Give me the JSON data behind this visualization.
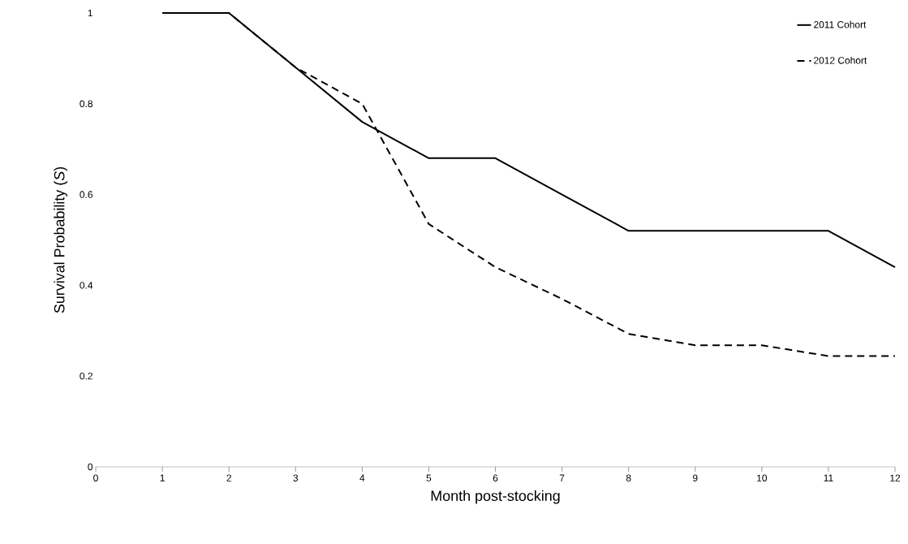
{
  "chart_data": {
    "type": "line",
    "xlabel": "Month post-stocking",
    "ylabel": "Survival Probability (*S*)",
    "x": [
      1,
      2,
      3,
      4,
      5,
      6,
      7,
      8,
      9,
      10,
      11,
      12
    ],
    "series": [
      {
        "name": "2011 Cohort",
        "color": "#000000",
        "line_style": "solid",
        "values": [
          1,
          1,
          0.88,
          0.76,
          0.68,
          0.68,
          0.6,
          0.52,
          0.52,
          0.52,
          0.52,
          0.44
        ]
      },
      {
        "name": "2012 Cohort",
        "color": "#000000",
        "line_style": "dashed",
        "values": [
          1,
          1,
          0.88,
          0.8,
          0.535,
          0.44,
          0.37,
          0.293,
          0.268,
          0.268,
          0.244,
          0.244
        ]
      }
    ],
    "xlim": [
      0,
      12
    ],
    "xticks": [
      0,
      1,
      2,
      3,
      4,
      5,
      6,
      7,
      8,
      9,
      10,
      11,
      12
    ],
    "ylim": [
      0,
      1
    ],
    "yticks": [
      0,
      0.2,
      0.4,
      0.6,
      0.8,
      1
    ],
    "legend": "top right",
    "grid": false,
    "marker": "none"
  }
}
